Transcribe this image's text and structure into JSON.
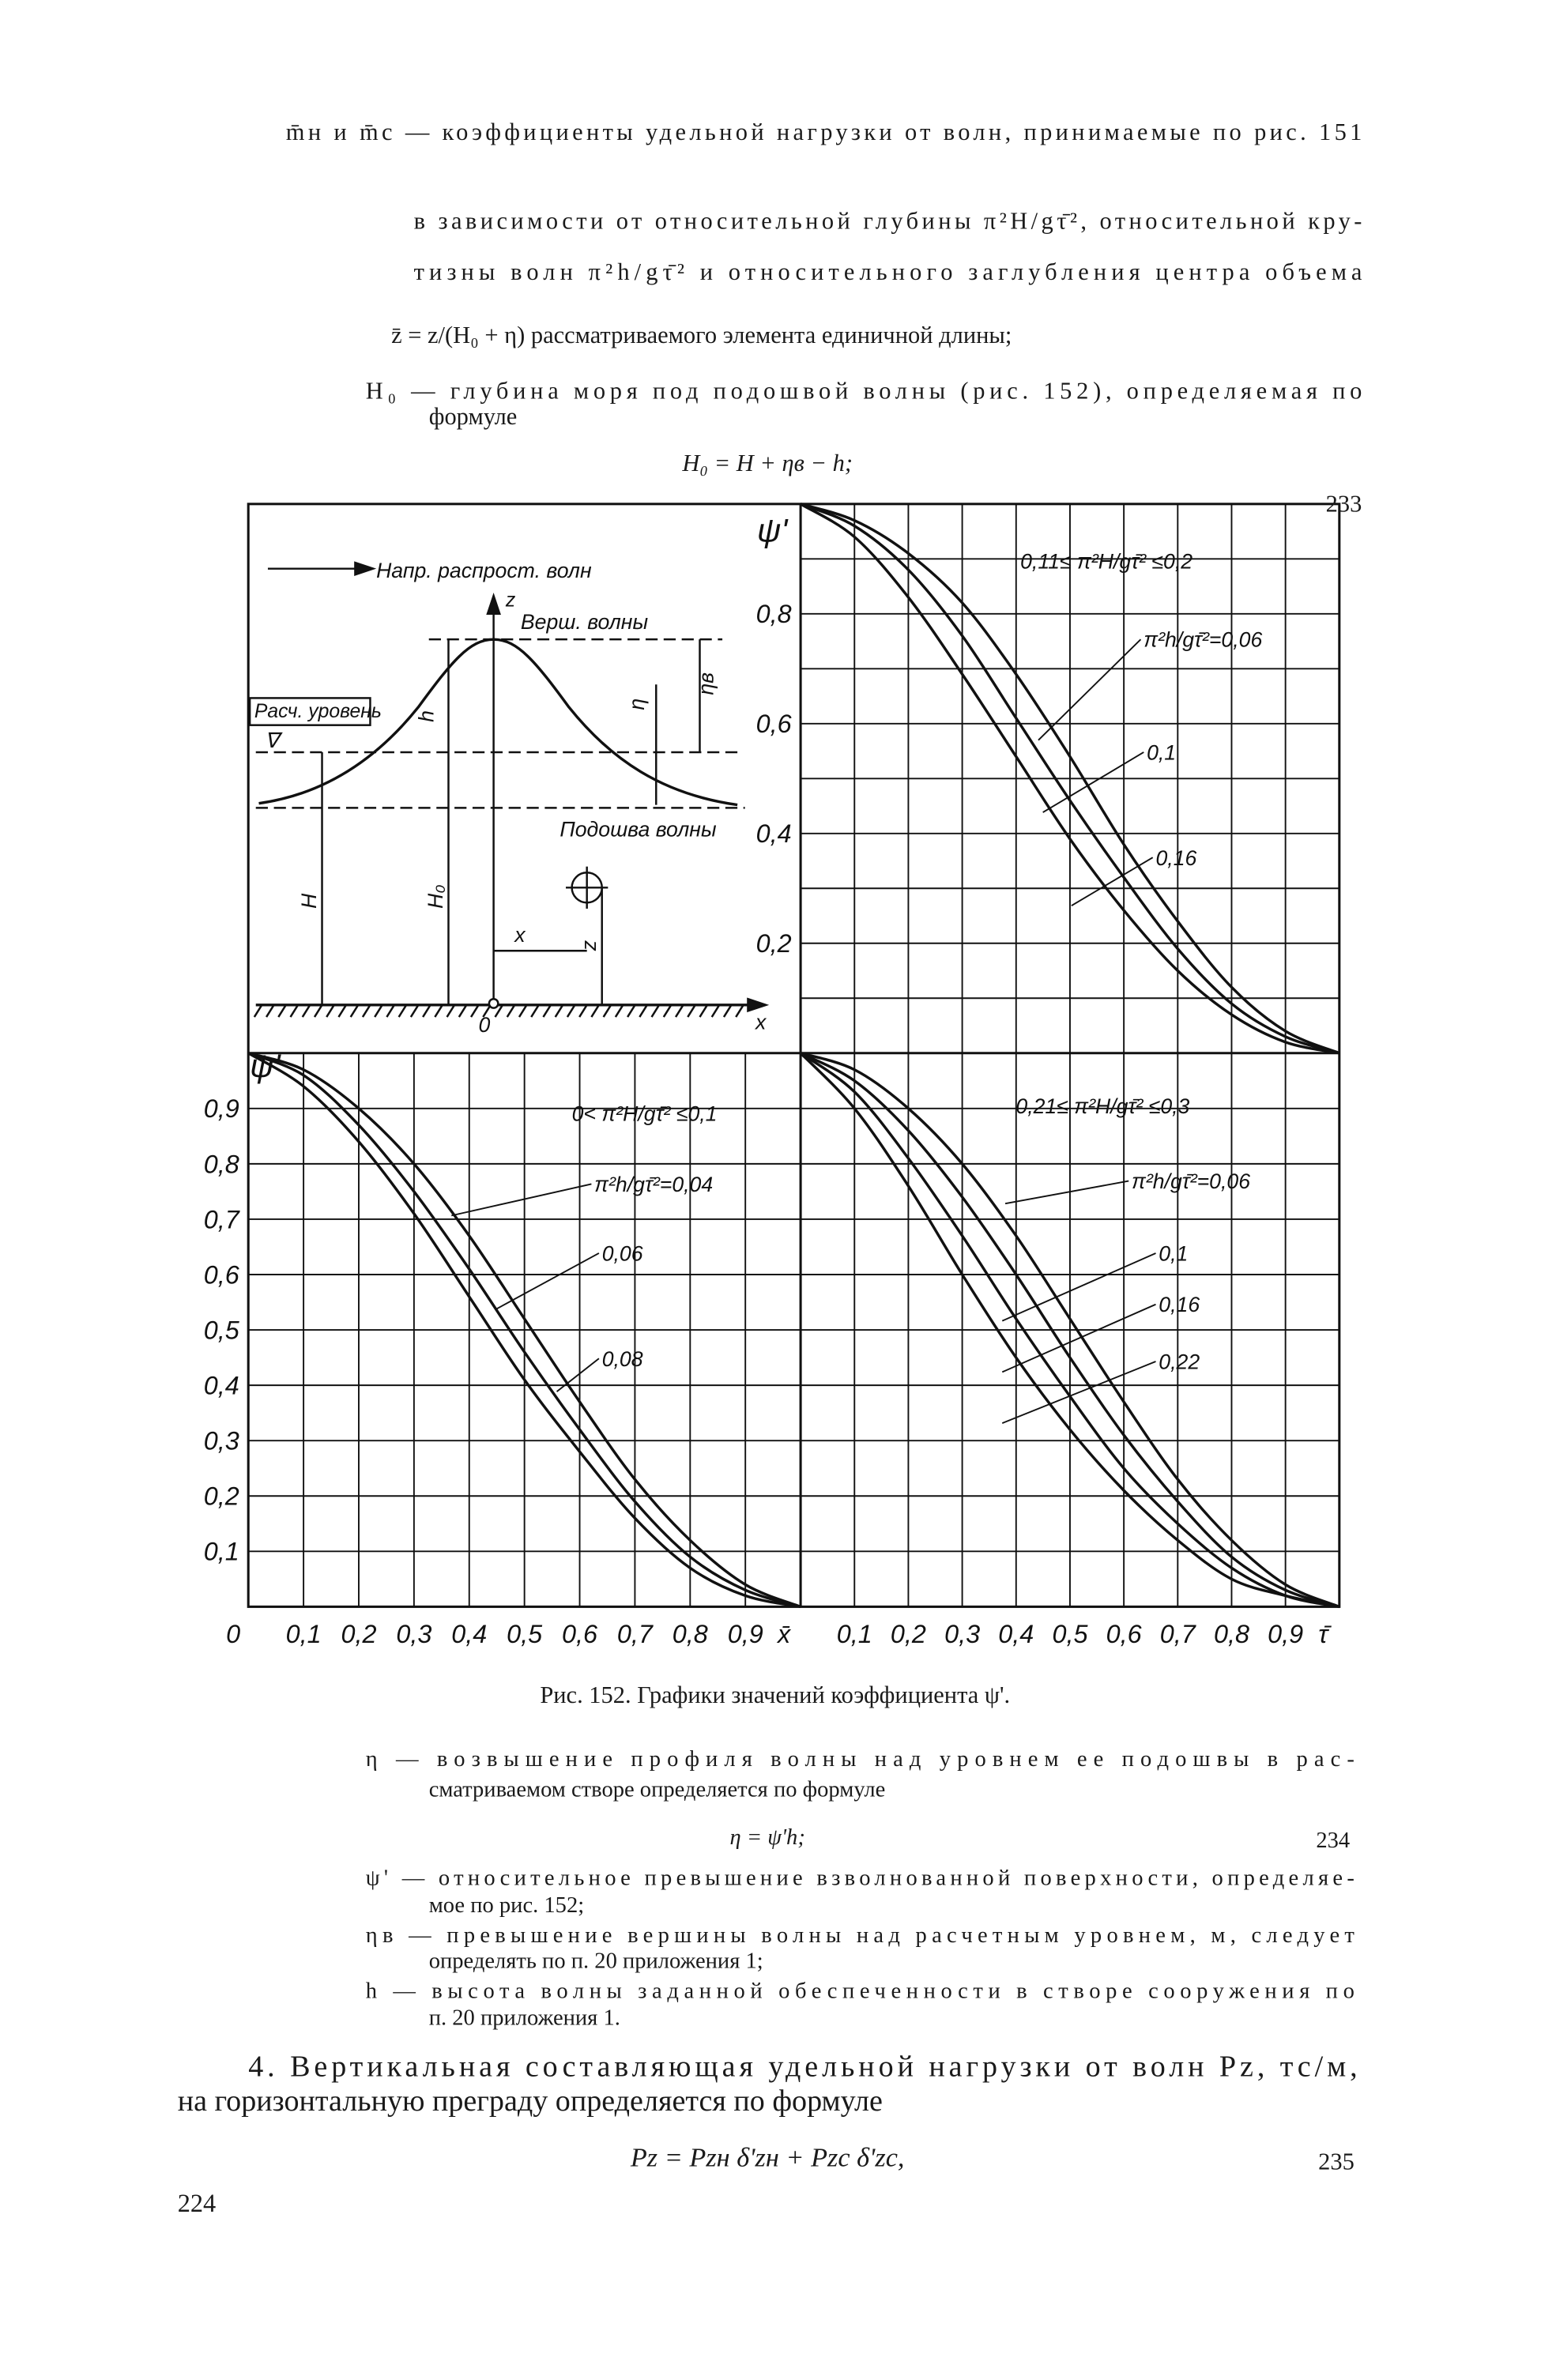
{
  "text_top": [
    "m̄н и m̄с — коэффициенты удельной нагрузки от волн, принимаемые по рис. 151",
    "в зависимости от относительной глубины π²H/gτ̄², относительной кру-",
    "тизны волн π²h/gτ̄² и относительного заглубления центра объема",
    "z̄ = z/(H₀ + η) рассматриваемого элемента единичной длины;",
    "H₀ — глубина моря под подошвой волны (рис. 152), определяемая по",
    "формуле"
  ],
  "formula_233": {
    "formula": "H₀ = H + ηв − h;",
    "number": 233
  },
  "diagram": {
    "direction": "Напр. распрост. волн",
    "z_axis": "z",
    "crest": "Верш. волны",
    "design_level": "Расч. уровень",
    "level_mark": "∇",
    "h": "h",
    "eta": "η",
    "eta_c": "ηв",
    "trough": "Подошва волны",
    "H": "H",
    "H0": "H₀",
    "x_dim": "x",
    "z_dim": "z",
    "origin": "0",
    "x_axis": "x"
  },
  "chart_data": [
    {
      "type": "line",
      "ylabel": "ψ'",
      "annotation": "0,11≤ π²H/gτ̄² ≤0,2",
      "x": [
        0,
        0.1,
        0.2,
        0.3,
        0.4,
        0.5,
        0.6,
        0.7,
        0.8,
        0.9,
        1
      ],
      "xlim": [
        0,
        1
      ],
      "ylim": [
        0,
        1
      ],
      "yticks": [
        {
          "value": 0.2,
          "label": "0,2"
        },
        {
          "value": 0.4,
          "label": "0,4"
        },
        {
          "value": 0.6,
          "label": "0,6"
        },
        {
          "value": 0.8,
          "label": "0,8"
        }
      ],
      "xgrid": [
        0.1,
        0.2,
        0.3,
        0.4,
        0.5,
        0.6,
        0.7,
        0.8,
        0.9
      ],
      "ygrid": [
        0.1,
        0.2,
        0.3,
        0.4,
        0.5,
        0.6,
        0.7,
        0.8,
        0.9
      ],
      "series": [
        {
          "name": "π²h/gτ̄²=0,06",
          "color": "#111111",
          "values": [
            1,
            0.97,
            0.91,
            0.82,
            0.69,
            0.54,
            0.38,
            0.24,
            0.12,
            0.04,
            0
          ]
        },
        {
          "name": "0,1",
          "color": "#111111",
          "values": [
            1,
            0.96,
            0.88,
            0.76,
            0.61,
            0.46,
            0.32,
            0.19,
            0.09,
            0.03,
            0
          ]
        },
        {
          "name": "0,16",
          "color": "#111111",
          "values": [
            1,
            0.94,
            0.83,
            0.69,
            0.54,
            0.39,
            0.26,
            0.15,
            0.07,
            0.02,
            0
          ]
        }
      ]
    },
    {
      "type": "line",
      "ylabel": "ψ'",
      "xlabel": "x̄",
      "annotation": "0< π²H/gτ̄² ≤0,1",
      "x": [
        0,
        0.1,
        0.2,
        0.3,
        0.4,
        0.5,
        0.6,
        0.7,
        0.8,
        0.9,
        1
      ],
      "xlim": [
        0,
        1
      ],
      "ylim": [
        0,
        1
      ],
      "xticks": [
        0,
        {
          "value": 0.1,
          "label": "0,1"
        },
        {
          "value": 0.2,
          "label": "0,2"
        },
        {
          "value": 0.3,
          "label": "0,3"
        },
        {
          "value": 0.4,
          "label": "0,4"
        },
        {
          "value": 0.5,
          "label": "0,5"
        },
        {
          "value": 0.6,
          "label": "0,6"
        },
        {
          "value": 0.7,
          "label": "0,7"
        },
        {
          "value": 0.8,
          "label": "0,8"
        },
        {
          "value": 0.9,
          "label": "0,9"
        }
      ],
      "yticks": [
        {
          "value": 0.1,
          "label": "0,1"
        },
        {
          "value": 0.2,
          "label": "0,2"
        },
        {
          "value": 0.3,
          "label": "0,3"
        },
        {
          "value": 0.4,
          "label": "0,4"
        },
        {
          "value": 0.5,
          "label": "0,5"
        },
        {
          "value": 0.6,
          "label": "0,6"
        },
        {
          "value": 0.7,
          "label": "0,7"
        },
        {
          "value": 0.8,
          "label": "0,8"
        },
        {
          "value": 0.9,
          "label": "0,9"
        }
      ],
      "xgrid": [
        0.1,
        0.2,
        0.3,
        0.4,
        0.5,
        0.6,
        0.7,
        0.8,
        0.9
      ],
      "ygrid": [
        0.1,
        0.2,
        0.3,
        0.4,
        0.5,
        0.6,
        0.7,
        0.8,
        0.9
      ],
      "series": [
        {
          "name": "π²h/gτ̄²=0,04",
          "color": "#111111",
          "values": [
            1,
            0.97,
            0.9,
            0.8,
            0.67,
            0.52,
            0.37,
            0.23,
            0.12,
            0.04,
            0
          ]
        },
        {
          "name": "0,06",
          "color": "#111111",
          "values": [
            1,
            0.96,
            0.87,
            0.75,
            0.61,
            0.46,
            0.32,
            0.19,
            0.09,
            0.03,
            0
          ]
        },
        {
          "name": "0,08",
          "color": "#111111",
          "values": [
            1,
            0.94,
            0.84,
            0.71,
            0.56,
            0.41,
            0.28,
            0.16,
            0.07,
            0.02,
            0
          ]
        }
      ]
    },
    {
      "type": "line",
      "xlabel": "τ̄",
      "annotation": "0,21≤ π²H/gτ̄² ≤0,3",
      "x": [
        0,
        0.1,
        0.2,
        0.3,
        0.4,
        0.5,
        0.6,
        0.7,
        0.8,
        0.9,
        1
      ],
      "xlim": [
        0,
        1
      ],
      "ylim": [
        0,
        1
      ],
      "xticks": [
        {
          "value": 0.1,
          "label": "0,1"
        },
        {
          "value": 0.2,
          "label": "0,2"
        },
        {
          "value": 0.3,
          "label": "0,3"
        },
        {
          "value": 0.4,
          "label": "0,4"
        },
        {
          "value": 0.5,
          "label": "0,5"
        },
        {
          "value": 0.6,
          "label": "0,6"
        },
        {
          "value": 0.7,
          "label": "0,7"
        },
        {
          "value": 0.8,
          "label": "0,8"
        },
        {
          "value": 0.9,
          "label": "0,9"
        }
      ],
      "xgrid": [
        0.1,
        0.2,
        0.3,
        0.4,
        0.5,
        0.6,
        0.7,
        0.8,
        0.9
      ],
      "ygrid": [
        0.1,
        0.2,
        0.3,
        0.4,
        0.5,
        0.6,
        0.7,
        0.8,
        0.9
      ],
      "series": [
        {
          "name": "π²h/gτ̄²=0,06",
          "color": "#111111",
          "values": [
            1,
            0.97,
            0.9,
            0.8,
            0.67,
            0.52,
            0.37,
            0.23,
            0.12,
            0.04,
            0
          ]
        },
        {
          "name": "0,1",
          "color": "#111111",
          "values": [
            1,
            0.95,
            0.86,
            0.74,
            0.6,
            0.45,
            0.31,
            0.19,
            0.09,
            0.03,
            0
          ]
        },
        {
          "name": "0,16",
          "color": "#111111",
          "values": [
            1,
            0.93,
            0.81,
            0.67,
            0.52,
            0.38,
            0.25,
            0.15,
            0.07,
            0.02,
            0
          ]
        },
        {
          "name": "0,22",
          "color": "#111111",
          "values": [
            1,
            0.9,
            0.76,
            0.6,
            0.45,
            0.32,
            0.21,
            0.12,
            0.05,
            0.02,
            0
          ]
        }
      ]
    }
  ],
  "caption": "Рис. 152. Графики значений коэффициента ψ'.",
  "text_bottom": [
    "η — возвышение профиля волны над уровнем ее подошвы в рас-",
    "сматриваемом створе определяется по формуле",
    "ψ' — относительное превышение взволнованной поверхности, определяе-",
    "мое по рис. 152;",
    "ηв — превышение вершины волны над расчетным уровнем, м, следует",
    "определять по п. 20 приложения 1;",
    "h — высота волны заданной обеспеченности в створе сооружения по",
    "п. 20 приложения 1."
  ],
  "formula_234": {
    "formula": "η = ψ'h;",
    "number": 234
  },
  "paragraph_4": [
    "4. Вертикальная составляющая удельной нагрузки от волн Pz, тс/м,",
    "на горизонтальную преграду определяется по формуле"
  ],
  "formula_235": {
    "formula": "Pz = Pzн δ'zн + Pzc δ'zc,",
    "number": 235
  },
  "page_number": 224
}
